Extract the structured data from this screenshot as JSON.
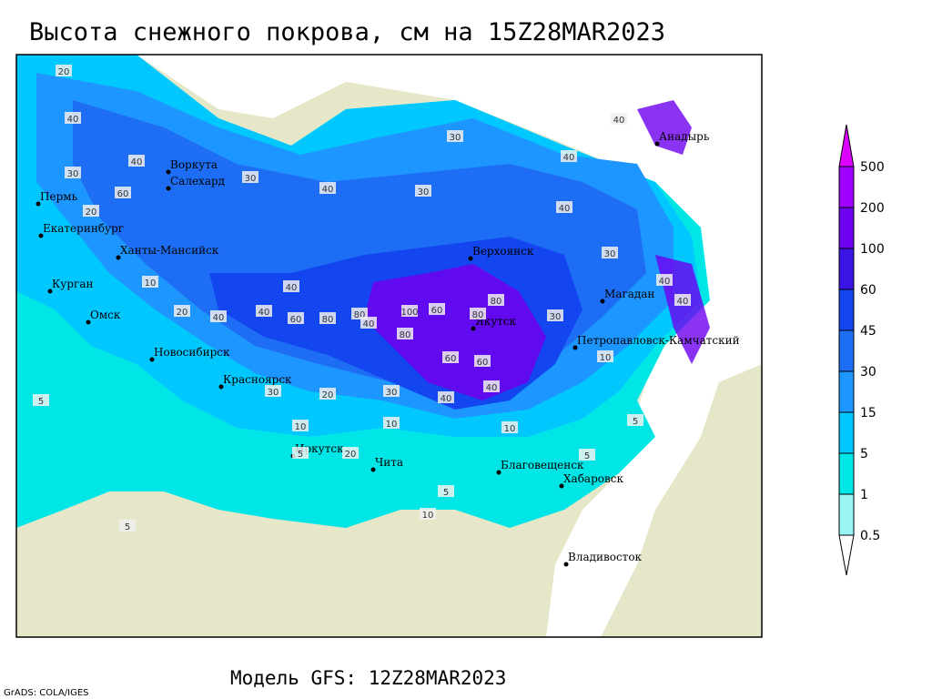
{
  "title": "Высота снежного покрова, см на 15Z28MAR2023",
  "footer": "Модель GFS: 12Z28MAR2023",
  "credit": "GrADS: COLA/IGES",
  "legend": {
    "levels": [
      0.5,
      1,
      5,
      15,
      30,
      45,
      60,
      100,
      200,
      500
    ],
    "colors": [
      "#ffffff",
      "#9af5f5",
      "#00e6e6",
      "#00c8ff",
      "#1e96ff",
      "#1e6ef5",
      "#1446f0",
      "#3c14e6",
      "#6e00f0",
      "#a000ff",
      "#dc00ff"
    ]
  },
  "cities": [
    "Воркута",
    "Салехард",
    "Пермь",
    "Екатеринбург",
    "Ханты-Мансийск",
    "Курган",
    "Омск",
    "Новосибирск",
    "Красноярск",
    "Иркутск",
    "Чита",
    "Благовещенск",
    "Хабаровск",
    "Владивосток",
    "Верхоянск",
    "Якутск",
    "Магадан",
    "Петропавловск-Камчатский",
    "Анадырь"
  ],
  "stations": [
    20,
    40,
    30,
    40,
    30,
    60,
    20,
    40,
    30,
    40,
    10,
    20,
    40,
    60,
    80,
    80,
    100,
    60,
    80,
    80,
    60,
    80,
    60,
    40,
    40,
    30,
    40,
    30,
    40,
    40,
    40,
    30,
    20,
    10,
    5,
    10,
    5,
    10,
    5,
    5,
    30,
    30,
    40,
    40,
    40,
    10,
    5,
    5,
    10,
    20
  ]
}
